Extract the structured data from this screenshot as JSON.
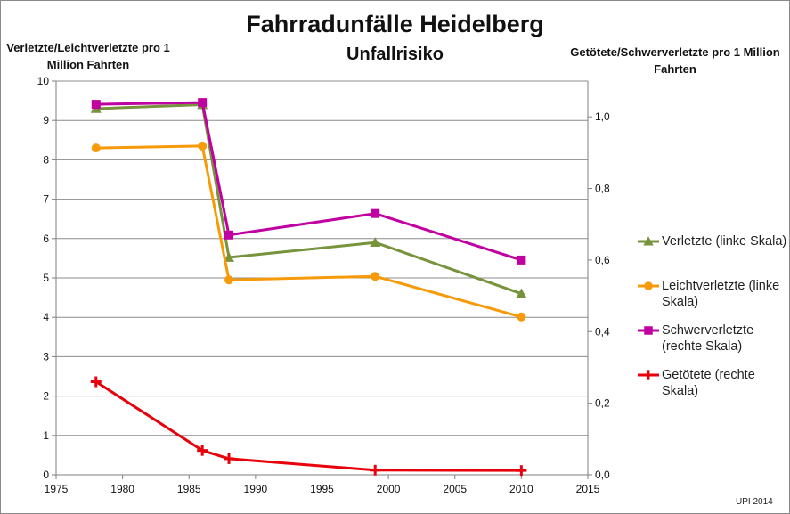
{
  "chart_data": {
    "type": "line",
    "title": "Fahrradunfälle Heidelberg",
    "subtitle": "Unfallrisiko",
    "ylabel_left": "Verletzte/Leichtverletzte pro 1 Million Fahrten",
    "ylabel_right": "Getötete/Schwerverletzte pro 1 Million Fahrten",
    "xlabel": "",
    "xlim": [
      1975,
      2015
    ],
    "x_ticks": [
      "1975",
      "1980",
      "1985",
      "1990",
      "1995",
      "2000",
      "2005",
      "2010",
      "2015"
    ],
    "ylim_left": [
      0,
      10
    ],
    "y_ticks_left": [
      "0",
      "1",
      "2",
      "3",
      "4",
      "5",
      "6",
      "7",
      "8",
      "9",
      "10"
    ],
    "ylim_right": [
      0,
      1.1
    ],
    "y_ticks_right": [
      "0,0",
      "0,2",
      "0,4",
      "0,6",
      "0,8",
      "1,0"
    ],
    "grid": true,
    "legend_position": "right",
    "series": [
      {
        "name": "Verletzte (linke Skala)",
        "axis": "left",
        "color": "#77933c",
        "marker": "triangle",
        "x": [
          1978,
          1986,
          1988,
          1999,
          2010
        ],
        "values": [
          9.3,
          9.4,
          5.52,
          5.9,
          4.6
        ]
      },
      {
        "name": "Leichtverletzte (linke Skala)",
        "axis": "left",
        "color": "#f79a09",
        "marker": "circle",
        "x": [
          1978,
          1986,
          1988,
          1999,
          2010
        ],
        "values": [
          8.3,
          8.35,
          4.95,
          5.04,
          4.01
        ]
      },
      {
        "name": "Schwerverletzte (rechte Skala)",
        "axis": "right",
        "color": "#c000a0",
        "marker": "square",
        "x": [
          1978,
          1986,
          1988,
          1999,
          2010
        ],
        "values": [
          1.035,
          1.04,
          0.67,
          0.73,
          0.6
        ]
      },
      {
        "name": "Getötete (rechte Skala)",
        "axis": "right",
        "color": "#e8000b",
        "marker": "plus",
        "x": [
          1978,
          1986,
          1988,
          1999,
          2010
        ],
        "values": [
          0.26,
          0.068,
          0.045,
          0.013,
          0.012
        ]
      }
    ]
  },
  "footer": {
    "credit": "UPI 2014"
  }
}
